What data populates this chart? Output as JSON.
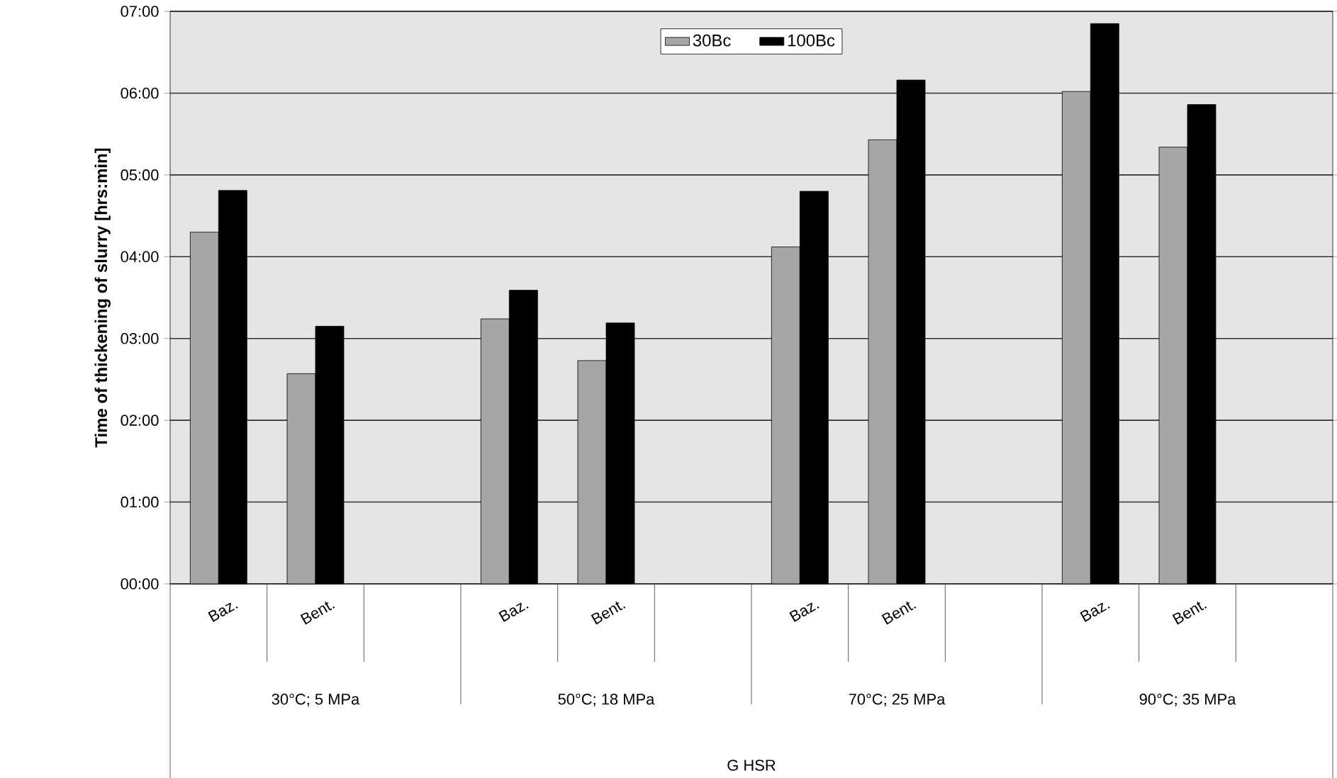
{
  "chart_data": {
    "type": "bar",
    "ylabel": "Time of thickening of slurry [hrs:min]",
    "categories": [
      "Baz.",
      "Bent.",
      null,
      "Baz.",
      "Bent.",
      null,
      "Baz.",
      "Bent.",
      null,
      "Baz.",
      "Bent.",
      null
    ],
    "annotations": [
      "30°C; 5 MPa",
      "50°C; 18 MPa",
      "70°C; 25 MPa",
      "90°C; 35 MPa",
      "G HSR"
    ],
    "series": [
      {
        "name": "30Bc",
        "color": "#a6a6a6",
        "values": [
          4.3,
          2.57,
          null,
          3.24,
          2.73,
          null,
          4.12,
          5.43,
          null,
          6.02,
          5.34,
          null
        ]
      },
      {
        "name": "100Bc",
        "color": "#000000",
        "values": [
          4.81,
          3.15,
          null,
          3.59,
          3.19,
          null,
          4.8,
          6.16,
          null,
          6.85,
          5.86,
          null
        ]
      }
    ],
    "ylim": [
      0,
      7
    ],
    "yticks": [
      {
        "value": 0,
        "label": "00:00"
      },
      {
        "value": 1,
        "label": "01:00"
      },
      {
        "value": 2,
        "label": "02:00"
      },
      {
        "value": 3,
        "label": "03:00"
      },
      {
        "value": 4,
        "label": "04:00"
      },
      {
        "value": 5,
        "label": "05:00"
      },
      {
        "value": 6,
        "label": "06:00"
      },
      {
        "value": 7,
        "label": "07:00"
      }
    ],
    "grid": "y",
    "legend": "top"
  }
}
